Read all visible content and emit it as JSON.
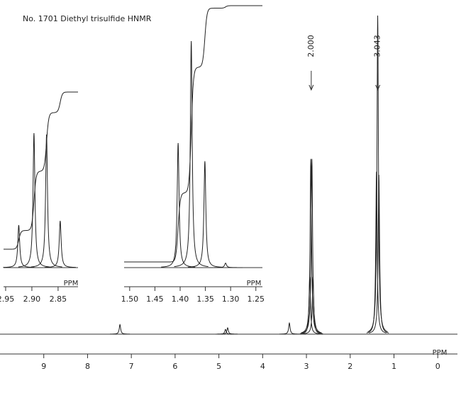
{
  "title": "No. 1701 Diethyl trisulfide HNMR",
  "chart_data": [
    {
      "type": "line",
      "x_label": "PPM",
      "xlim": [
        10,
        -0.45
      ],
      "xticks": [
        9,
        8,
        7,
        6,
        5,
        4,
        3,
        2,
        1,
        0
      ],
      "ylim": [
        0,
        100
      ],
      "x": [
        7.26,
        4.85,
        4.8,
        3.39,
        2.925,
        2.9,
        2.875,
        2.85,
        1.4,
        1.372,
        1.345
      ],
      "values": [
        3,
        1.5,
        2,
        3.5,
        18,
        55,
        55,
        18,
        51,
        100,
        50
      ],
      "integrals": [
        {
          "value": 2,
          "label": "2.000",
          "x": 2.89
        },
        {
          "value": 3.043,
          "label": "3.043",
          "x": 1.37
        }
      ]
    },
    {
      "type": "line",
      "x_label": "PPM",
      "xlim": [
        2.954,
        2.812
      ],
      "xticks": [
        {
          "value": 2.95,
          "label": "2.95"
        },
        {
          "value": 2.9,
          "label": "2.90"
        },
        {
          "value": 2.85,
          "label": "2.85"
        }
      ],
      "ylim": [
        0,
        100
      ],
      "x": [
        2.925,
        2.896,
        2.872,
        2.846
      ],
      "values": [
        30,
        95,
        94,
        33
      ]
    },
    {
      "type": "line",
      "x_label": "PPM",
      "xlim": [
        1.511,
        1.237
      ],
      "xticks": [
        {
          "value": 1.5,
          "label": "1.50"
        },
        {
          "value": 1.45,
          "label": "1.45"
        },
        {
          "value": 1.4,
          "label": "1.40"
        },
        {
          "value": 1.35,
          "label": "1.35"
        },
        {
          "value": 1.3,
          "label": "1.30"
        },
        {
          "value": 1.25,
          "label": "1.25"
        }
      ],
      "ylim": [
        0,
        100
      ],
      "x": [
        1.404,
        1.378,
        1.351,
        1.31
      ],
      "values": [
        55,
        100,
        47,
        2
      ]
    }
  ]
}
